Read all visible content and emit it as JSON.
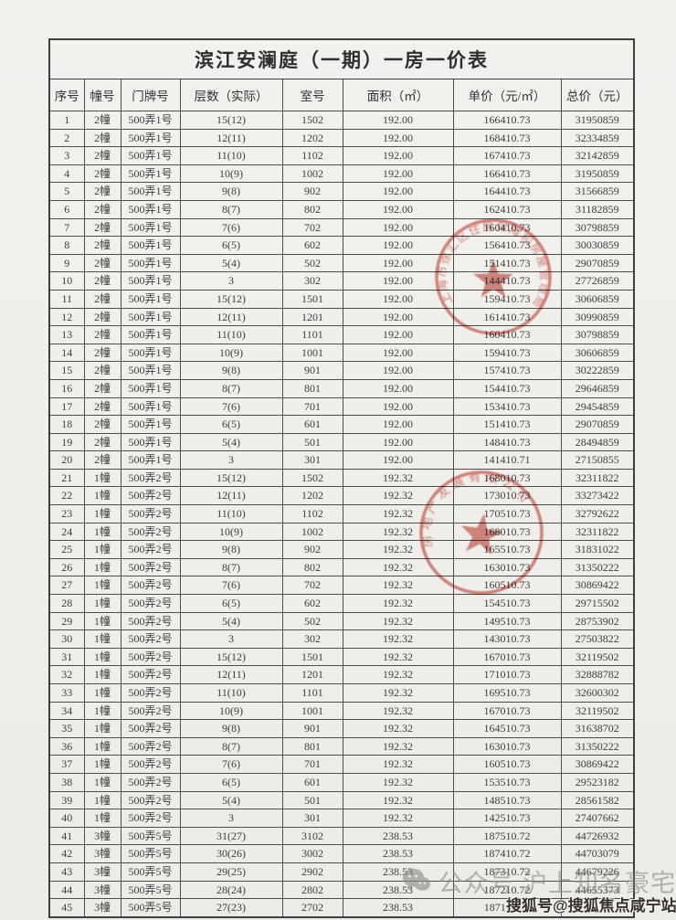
{
  "page": {
    "title": "滨江安澜庭（一期）一房一价表"
  },
  "table": {
    "columns": [
      "序号",
      "幢号",
      "门牌号",
      "层数（实际）",
      "室号",
      "面积（㎡）",
      "单价（元/㎡）",
      "总价（元）"
    ],
    "rows": [
      [
        "1",
        "2幢",
        "500弄1号",
        "15(12)",
        "1502",
        "192.00",
        "166410.73",
        "31950859"
      ],
      [
        "2",
        "2幢",
        "500弄1号",
        "12(11)",
        "1202",
        "192.00",
        "168410.73",
        "32334859"
      ],
      [
        "3",
        "2幢",
        "500弄1号",
        "11(10)",
        "1102",
        "192.00",
        "167410.73",
        "32142859"
      ],
      [
        "4",
        "2幢",
        "500弄1号",
        "10(9)",
        "1002",
        "192.00",
        "166410.73",
        "31950859"
      ],
      [
        "5",
        "2幢",
        "500弄1号",
        "9(8)",
        "902",
        "192.00",
        "164410.73",
        "31566859"
      ],
      [
        "6",
        "2幢",
        "500弄1号",
        "8(7)",
        "802",
        "192.00",
        "162410.73",
        "31182859"
      ],
      [
        "7",
        "2幢",
        "500弄1号",
        "7(6)",
        "702",
        "192.00",
        "160410.73",
        "30798859"
      ],
      [
        "8",
        "2幢",
        "500弄1号",
        "6(5)",
        "602",
        "192.00",
        "156410.73",
        "30030859"
      ],
      [
        "9",
        "2幢",
        "500弄1号",
        "5(4)",
        "502",
        "192.00",
        "151410.73",
        "29070859"
      ],
      [
        "10",
        "2幢",
        "500弄1号",
        "3",
        "302",
        "192.00",
        "144410.73",
        "27726859"
      ],
      [
        "11",
        "2幢",
        "500弄1号",
        "15(12)",
        "1501",
        "192.00",
        "159410.73",
        "30606859"
      ],
      [
        "12",
        "2幢",
        "500弄1号",
        "12(11)",
        "1201",
        "192.00",
        "161410.73",
        "30990859"
      ],
      [
        "13",
        "2幢",
        "500弄1号",
        "11(10)",
        "1101",
        "192.00",
        "160410.73",
        "30798859"
      ],
      [
        "14",
        "2幢",
        "500弄1号",
        "10(9)",
        "1001",
        "192.00",
        "159410.73",
        "30606859"
      ],
      [
        "15",
        "2幢",
        "500弄1号",
        "9(8)",
        "901",
        "192.00",
        "157410.73",
        "30222859"
      ],
      [
        "16",
        "2幢",
        "500弄1号",
        "8(7)",
        "801",
        "192.00",
        "154410.73",
        "29646859"
      ],
      [
        "17",
        "2幢",
        "500弄1号",
        "7(6)",
        "701",
        "192.00",
        "153410.73",
        "29454859"
      ],
      [
        "18",
        "2幢",
        "500弄1号",
        "6(5)",
        "601",
        "192.00",
        "151410.73",
        "29070859"
      ],
      [
        "19",
        "2幢",
        "500弄1号",
        "5(4)",
        "501",
        "192.00",
        "148410.73",
        "28494859"
      ],
      [
        "20",
        "2幢",
        "500弄1号",
        "3",
        "301",
        "192.00",
        "141410.71",
        "27150855"
      ],
      [
        "21",
        "1幢",
        "500弄2号",
        "15(12)",
        "1502",
        "192.32",
        "168010.73",
        "32311822"
      ],
      [
        "22",
        "1幢",
        "500弄2号",
        "12(11)",
        "1202",
        "192.32",
        "173010.73",
        "33273422"
      ],
      [
        "23",
        "1幢",
        "500弄2号",
        "11(10)",
        "1102",
        "192.32",
        "170510.73",
        "32792622"
      ],
      [
        "24",
        "1幢",
        "500弄2号",
        "10(9)",
        "1002",
        "192.32",
        "168010.73",
        "32311822"
      ],
      [
        "25",
        "1幢",
        "500弄2号",
        "9(8)",
        "902",
        "192.32",
        "165510.73",
        "31831022"
      ],
      [
        "26",
        "1幢",
        "500弄2号",
        "8(7)",
        "802",
        "192.32",
        "163010.73",
        "31350222"
      ],
      [
        "27",
        "1幢",
        "500弄2号",
        "7(6)",
        "702",
        "192.32",
        "160510.73",
        "30869422"
      ],
      [
        "28",
        "1幢",
        "500弄2号",
        "6(5)",
        "602",
        "192.32",
        "154510.73",
        "29715502"
      ],
      [
        "29",
        "1幢",
        "500弄2号",
        "5(4)",
        "502",
        "192.32",
        "149510.73",
        "28753902"
      ],
      [
        "30",
        "1幢",
        "500弄2号",
        "3",
        "302",
        "192.32",
        "143010.73",
        "27503822"
      ],
      [
        "31",
        "1幢",
        "500弄2号",
        "15(12)",
        "1501",
        "192.32",
        "167010.73",
        "32119502"
      ],
      [
        "32",
        "1幢",
        "500弄2号",
        "12(11)",
        "1201",
        "192.32",
        "171010.73",
        "32888782"
      ],
      [
        "33",
        "1幢",
        "500弄2号",
        "11(10)",
        "1101",
        "192.32",
        "169510.73",
        "32600302"
      ],
      [
        "34",
        "1幢",
        "500弄2号",
        "10(9)",
        "1001",
        "192.32",
        "167010.73",
        "32119502"
      ],
      [
        "35",
        "1幢",
        "500弄2号",
        "9(8)",
        "901",
        "192.32",
        "164510.73",
        "31638702"
      ],
      [
        "36",
        "1幢",
        "500弄2号",
        "8(7)",
        "801",
        "192.32",
        "163010.73",
        "31350222"
      ],
      [
        "37",
        "1幢",
        "500弄2号",
        "7(6)",
        "701",
        "192.32",
        "160510.73",
        "30869422"
      ],
      [
        "38",
        "1幢",
        "500弄2号",
        "6(5)",
        "601",
        "192.32",
        "153510.73",
        "29523182"
      ],
      [
        "39",
        "1幢",
        "500弄2号",
        "5(4)",
        "501",
        "192.32",
        "148510.73",
        "28561582"
      ],
      [
        "40",
        "1幢",
        "500弄2号",
        "3",
        "301",
        "192.32",
        "142510.73",
        "27407662"
      ],
      [
        "41",
        "3幢",
        "500弄5号",
        "31(27)",
        "3102",
        "238.53",
        "187510.72",
        "44726932"
      ],
      [
        "42",
        "3幢",
        "500弄5号",
        "30(26)",
        "3002",
        "238.53",
        "187410.72",
        "44703079"
      ],
      [
        "43",
        "3幢",
        "500弄5号",
        "29(25)",
        "2902",
        "238.53",
        "187310.72",
        "44679226"
      ],
      [
        "44",
        "3幢",
        "500弄5号",
        "28(24)",
        "2802",
        "238.53",
        "187210.72",
        "44655373"
      ],
      [
        "45",
        "3幢",
        "500弄5号",
        "27(23)",
        "2702",
        "238.53",
        "187110.72",
        ""
      ]
    ]
  },
  "stamps": [
    {
      "name": "government-seal",
      "arc_text": "上海市徐汇区住房保障和房屋管理局"
    },
    {
      "name": "company-seal",
      "arc_text": "房地产发展有限公司"
    }
  ],
  "watermarks": {
    "wechat": {
      "icon": "wechat-icon",
      "text": "公众号 沪上知名豪宅"
    },
    "sohu": {
      "text": "搜狐号@搜狐焦点咸宁站"
    }
  },
  "colors": {
    "stamp_red": "#c0392b",
    "border": "#4d4d4d",
    "text": "#3a3a3a",
    "paper": "#f1efeb"
  }
}
